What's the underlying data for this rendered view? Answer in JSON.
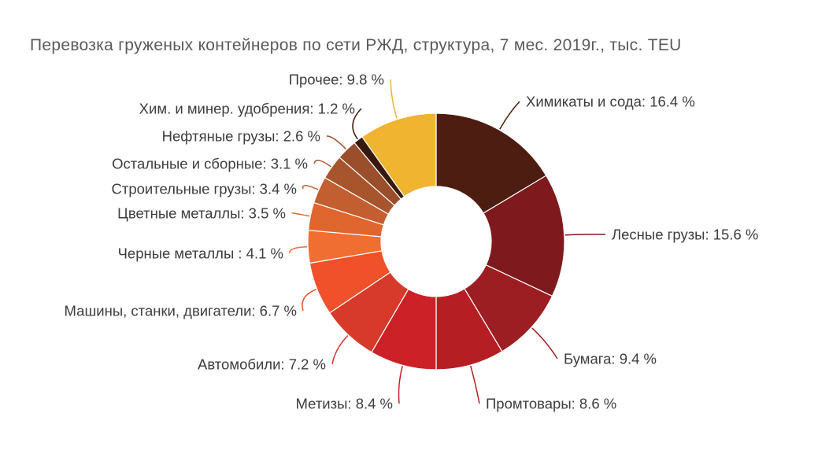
{
  "chart_data": {
    "type": "pie",
    "subtype": "donut",
    "title": "Перевозка груженых контейнеров по сети РЖД, структура, 7 мес. 2019г., тыс. TEU",
    "unit": "%",
    "label_format": "{name}: {value} %",
    "direction": "clockwise",
    "start_angle_deg": 0,
    "inner_radius_ratio": 0.43,
    "legend": "none",
    "background_color": "#ffffff",
    "title_color": "#5a5a5a",
    "label_text_color": "#3d3d3d",
    "series": [
      {
        "name": "Химикаты и сода",
        "value": 16.4,
        "color": "#4C1D10"
      },
      {
        "name": "Лесные грузы",
        "value": 15.6,
        "color": "#7E1A1E"
      },
      {
        "name": "Бумага",
        "value": 9.4,
        "color": "#9C1E23"
      },
      {
        "name": "Промтовары",
        "value": 8.6,
        "color": "#B51F24"
      },
      {
        "name": "Метизы",
        "value": 8.4,
        "color": "#CC2127"
      },
      {
        "name": "Автомобили",
        "value": 7.2,
        "color": "#D73A2B"
      },
      {
        "name": "Машины, станки, двигатели",
        "value": 6.7,
        "color": "#F0512A"
      },
      {
        "name": "Черные металлы ",
        "value": 4.1,
        "color": "#F06E31"
      },
      {
        "name": "Цветные металлы",
        "value": 3.5,
        "color": "#E0662F"
      },
      {
        "name": "Строительные грузы",
        "value": 3.4,
        "color": "#C25E2F"
      },
      {
        "name": "Остальные и сборные",
        "value": 3.1,
        "color": "#A8552E"
      },
      {
        "name": "Нефтяные грузы",
        "value": 2.6,
        "color": "#9A4E2B"
      },
      {
        "name": "Хим. и минер. удобрения",
        "value": 1.2,
        "color": "#38190B"
      },
      {
        "name": "Прочее",
        "value": 9.8,
        "color": "#F0B431"
      }
    ]
  }
}
